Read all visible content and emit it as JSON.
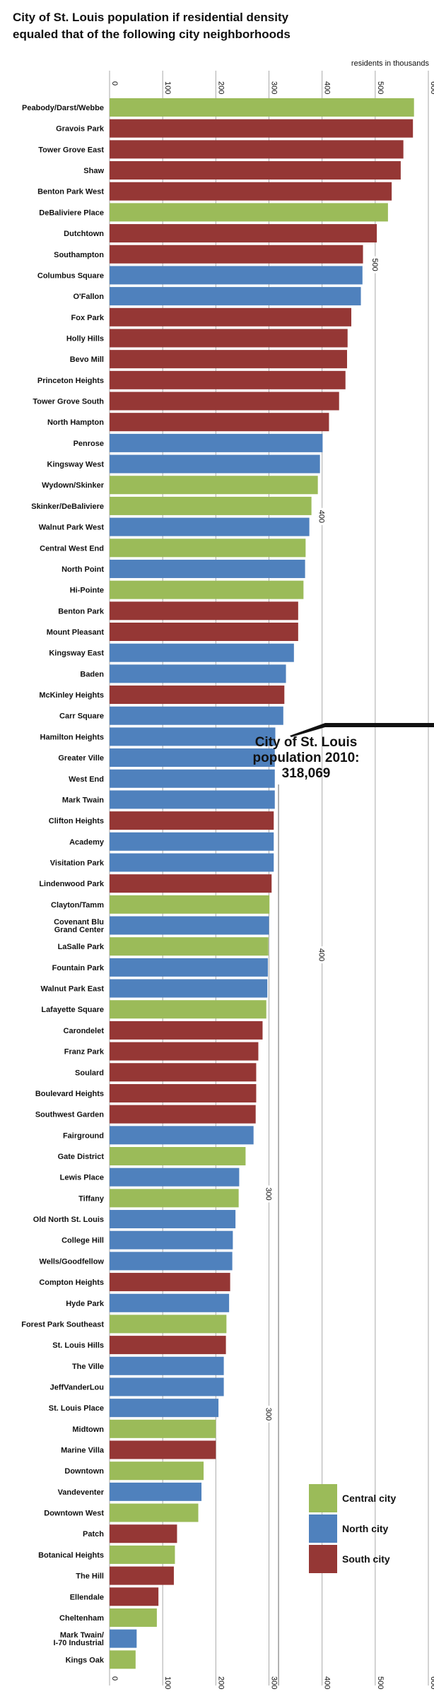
{
  "chart_data": {
    "type": "bar",
    "title": "City of St. Louis population if residential density\nequaled that of the following city neighborhoods",
    "x_axis_label": "residents in thousands",
    "xlim": [
      0,
      600
    ],
    "xticks": [
      0,
      100,
      200,
      300,
      400,
      500,
      600
    ],
    "grid": true,
    "categories": [
      "Peabody/Darst/Webbe",
      "Gravois Park",
      "Tower Grove East",
      "Shaw",
      "Benton Park West",
      "DeBaliviere Place",
      "Dutchtown",
      "Southampton",
      "Columbus Square",
      "O'Fallon",
      "Fox Park",
      "Holly Hills",
      "Bevo Mill",
      "Princeton Heights",
      "Tower Grove South",
      "North Hampton",
      "Penrose",
      "Kingsway West",
      "Wydown/Skinker",
      "Skinker/DeBaliviere",
      "Walnut Park West",
      "Central West End",
      "North Point",
      "Hi-Pointe",
      "Benton Park",
      "Mount Pleasant",
      "Kingsway East",
      "Baden",
      "McKinley Heights",
      "Carr Square",
      "Hamilton Heights",
      "Greater Ville",
      "West End",
      "Mark Twain",
      "Clifton Heights",
      "Academy",
      "Visitation Park",
      "Lindenwood Park",
      "Clayton/Tamm",
      "Covenant Blu\nGrand Center",
      "LaSalle Park",
      "Fountain Park",
      "Walnut Park East",
      "Lafayette Square",
      "Carondelet",
      "Franz Park",
      "Soulard",
      "Boulevard Heights",
      "Southwest Garden",
      "Fairground",
      "Gate District",
      "Lewis Place",
      "Tiffany",
      "Old North St. Louis",
      "College Hill",
      "Wells/Goodfellow",
      "Compton Heights",
      "Hyde Park",
      "Forest Park Southeast",
      "St. Louis Hills",
      "The Ville",
      "JeffVanderLou",
      "St. Louis Place",
      "Midtown",
      "Marine Villa",
      "Downtown",
      "Vandeventer",
      "Downtown West",
      "Patch",
      "Botanical Heights",
      "The Hill",
      "Ellendale",
      "Cheltenham",
      "Mark Twain/\nI-70 Industrial",
      "Kings Oak"
    ],
    "values": [
      573,
      571,
      553,
      548,
      531,
      524,
      503,
      477,
      476,
      473,
      455,
      448,
      447,
      444,
      432,
      413,
      401,
      396,
      392,
      380,
      376,
      369,
      368,
      365,
      355,
      355,
      347,
      332,
      329,
      327,
      312,
      311,
      311,
      311,
      309,
      309,
      309,
      305,
      301,
      300,
      299,
      298,
      297,
      295,
      288,
      280,
      276,
      276,
      275,
      271,
      256,
      244,
      243,
      237,
      232,
      231,
      227,
      225,
      220,
      219,
      215,
      215,
      205,
      200,
      200,
      177,
      173,
      167,
      127,
      123,
      121,
      92,
      89,
      51,
      49
    ],
    "colors": [
      "#9bbb59",
      "#953735",
      "#953735",
      "#953735",
      "#953735",
      "#9bbb59",
      "#953735",
      "#953735",
      "#4f81bd",
      "#4f81bd",
      "#953735",
      "#953735",
      "#953735",
      "#953735",
      "#953735",
      "#953735",
      "#4f81bd",
      "#4f81bd",
      "#9bbb59",
      "#9bbb59",
      "#4f81bd",
      "#9bbb59",
      "#4f81bd",
      "#9bbb59",
      "#953735",
      "#953735",
      "#4f81bd",
      "#4f81bd",
      "#953735",
      "#4f81bd",
      "#4f81bd",
      "#4f81bd",
      "#4f81bd",
      "#4f81bd",
      "#953735",
      "#4f81bd",
      "#4f81bd",
      "#953735",
      "#9bbb59",
      "#4f81bd",
      "#9bbb59",
      "#4f81bd",
      "#4f81bd",
      "#9bbb59",
      "#953735",
      "#953735",
      "#953735",
      "#953735",
      "#953735",
      "#4f81bd",
      "#9bbb59",
      "#4f81bd",
      "#9bbb59",
      "#4f81bd",
      "#4f81bd",
      "#4f81bd",
      "#953735",
      "#4f81bd",
      "#9bbb59",
      "#953735",
      "#4f81bd",
      "#4f81bd",
      "#4f81bd",
      "#9bbb59",
      "#953735",
      "#9bbb59",
      "#4f81bd",
      "#9bbb59",
      "#953735",
      "#9bbb59",
      "#953735",
      "#953735",
      "#9bbb59",
      "#4f81bd",
      "#9bbb59"
    ],
    "legend": [
      {
        "name": "Central city",
        "color": "#9bbb59"
      },
      {
        "name": "North city",
        "color": "#4f81bd"
      },
      {
        "name": "South city",
        "color": "#953735"
      }
    ],
    "mid_axis_labels": [
      500,
      400,
      400,
      300,
      300
    ],
    "annotation": {
      "text": "City of St. Louis\npopulation 2010:\n318,069",
      "value": 318.069
    }
  }
}
